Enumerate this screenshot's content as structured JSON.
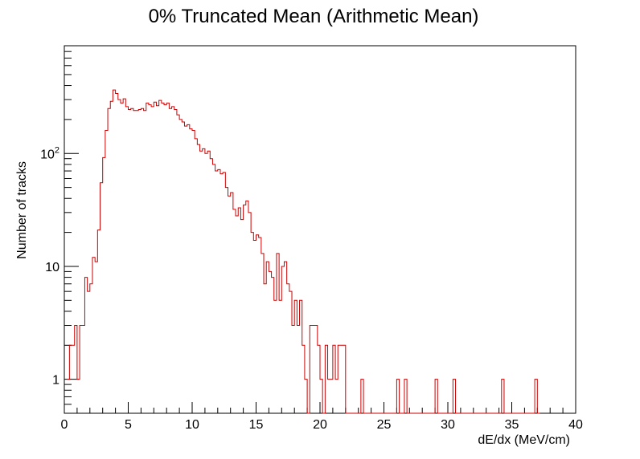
{
  "chart_data": {
    "type": "histogram",
    "title": "0% Truncated Mean (Arithmetic Mean)",
    "xlabel": "dE/dx (MeV/cm)",
    "ylabel": "Number of tracks",
    "xlim": [
      0,
      40
    ],
    "ylim": [
      0.5,
      900
    ],
    "yscale": "log",
    "grid": false,
    "legend": "none",
    "line_color": "#cc0000",
    "bin_width": 0.2,
    "x_ticks": [
      {
        "value": 0,
        "label": "0"
      },
      {
        "value": 5,
        "label": "5"
      },
      {
        "value": 10,
        "label": "10"
      },
      {
        "value": 15,
        "label": "15"
      },
      {
        "value": 20,
        "label": "20"
      },
      {
        "value": 25,
        "label": "25"
      },
      {
        "value": 30,
        "label": "30"
      },
      {
        "value": 35,
        "label": "35"
      },
      {
        "value": 40,
        "label": "40"
      }
    ],
    "y_ticks": [
      {
        "value": 1,
        "label": "1"
      },
      {
        "value": 10,
        "label": "10"
      },
      {
        "value": 100,
        "label": "10",
        "sup": "2"
      }
    ],
    "bins": [
      [
        0.2,
        1
      ],
      [
        0.4,
        2
      ],
      [
        0.6,
        2
      ],
      [
        0.8,
        3
      ],
      [
        1.0,
        1
      ],
      [
        1.2,
        3
      ],
      [
        1.4,
        3
      ],
      [
        1.6,
        8
      ],
      [
        1.8,
        6
      ],
      [
        2.0,
        7
      ],
      [
        2.2,
        12
      ],
      [
        2.4,
        11
      ],
      [
        2.6,
        21
      ],
      [
        2.8,
        55
      ],
      [
        3.0,
        92
      ],
      [
        3.2,
        160
      ],
      [
        3.4,
        250
      ],
      [
        3.6,
        290
      ],
      [
        3.8,
        365
      ],
      [
        4.0,
        340
      ],
      [
        4.2,
        300
      ],
      [
        4.4,
        280
      ],
      [
        4.6,
        305
      ],
      [
        4.8,
        260
      ],
      [
        5.0,
        245
      ],
      [
        5.2,
        250
      ],
      [
        5.4,
        240
      ],
      [
        5.6,
        240
      ],
      [
        5.8,
        245
      ],
      [
        6.0,
        250
      ],
      [
        6.2,
        240
      ],
      [
        6.4,
        280
      ],
      [
        6.6,
        270
      ],
      [
        6.8,
        260
      ],
      [
        7.0,
        285
      ],
      [
        7.2,
        265
      ],
      [
        7.4,
        295
      ],
      [
        7.6,
        280
      ],
      [
        7.8,
        270
      ],
      [
        8.0,
        280
      ],
      [
        8.2,
        250
      ],
      [
        8.4,
        260
      ],
      [
        8.6,
        245
      ],
      [
        8.8,
        220
      ],
      [
        9.0,
        200
      ],
      [
        9.2,
        190
      ],
      [
        9.4,
        175
      ],
      [
        9.6,
        180
      ],
      [
        9.8,
        165
      ],
      [
        10.0,
        160
      ],
      [
        10.2,
        135
      ],
      [
        10.4,
        120
      ],
      [
        10.6,
        105
      ],
      [
        10.8,
        110
      ],
      [
        11.0,
        100
      ],
      [
        11.2,
        105
      ],
      [
        11.4,
        90
      ],
      [
        11.6,
        80
      ],
      [
        11.8,
        70
      ],
      [
        12.0,
        72
      ],
      [
        12.2,
        66
      ],
      [
        12.4,
        68
      ],
      [
        12.6,
        50
      ],
      [
        12.8,
        42
      ],
      [
        13.0,
        45
      ],
      [
        13.2,
        32
      ],
      [
        13.4,
        28
      ],
      [
        13.6,
        33
      ],
      [
        13.8,
        26
      ],
      [
        14.0,
        35
      ],
      [
        14.2,
        38
      ],
      [
        14.4,
        30
      ],
      [
        14.6,
        20
      ],
      [
        14.8,
        17
      ],
      [
        15.0,
        19
      ],
      [
        15.2,
        18
      ],
      [
        15.4,
        13
      ],
      [
        15.6,
        7
      ],
      [
        15.8,
        11
      ],
      [
        16.0,
        9
      ],
      [
        16.2,
        8
      ],
      [
        16.4,
        5
      ],
      [
        16.6,
        13
      ],
      [
        16.8,
        5
      ],
      [
        17.0,
        10
      ],
      [
        17.2,
        11
      ],
      [
        17.4,
        7
      ],
      [
        17.6,
        6
      ],
      [
        17.8,
        3
      ],
      [
        18.0,
        5
      ],
      [
        18.2,
        3
      ],
      [
        18.4,
        5
      ],
      [
        18.6,
        2
      ],
      [
        18.8,
        1
      ],
      [
        19.0,
        0.01
      ],
      [
        19.2,
        3
      ],
      [
        19.4,
        3
      ],
      [
        19.6,
        3
      ],
      [
        19.8,
        2
      ],
      [
        20.0,
        1
      ],
      [
        20.2,
        0.01
      ],
      [
        20.4,
        2
      ],
      [
        20.6,
        1
      ],
      [
        20.8,
        1
      ],
      [
        21.0,
        2
      ],
      [
        21.2,
        1
      ],
      [
        21.4,
        2
      ],
      [
        21.6,
        2
      ],
      [
        21.8,
        2
      ],
      [
        22.0,
        0.01
      ],
      [
        23.2,
        1
      ],
      [
        23.4,
        0.01
      ],
      [
        26.0,
        1
      ],
      [
        26.2,
        0.01
      ],
      [
        26.6,
        1
      ],
      [
        26.8,
        0.01
      ],
      [
        29.0,
        1
      ],
      [
        29.2,
        0.01
      ],
      [
        30.4,
        1
      ],
      [
        30.6,
        0.01
      ],
      [
        34.2,
        1
      ],
      [
        34.4,
        0.01
      ],
      [
        36.8,
        1
      ],
      [
        37.0,
        0.01
      ]
    ]
  }
}
